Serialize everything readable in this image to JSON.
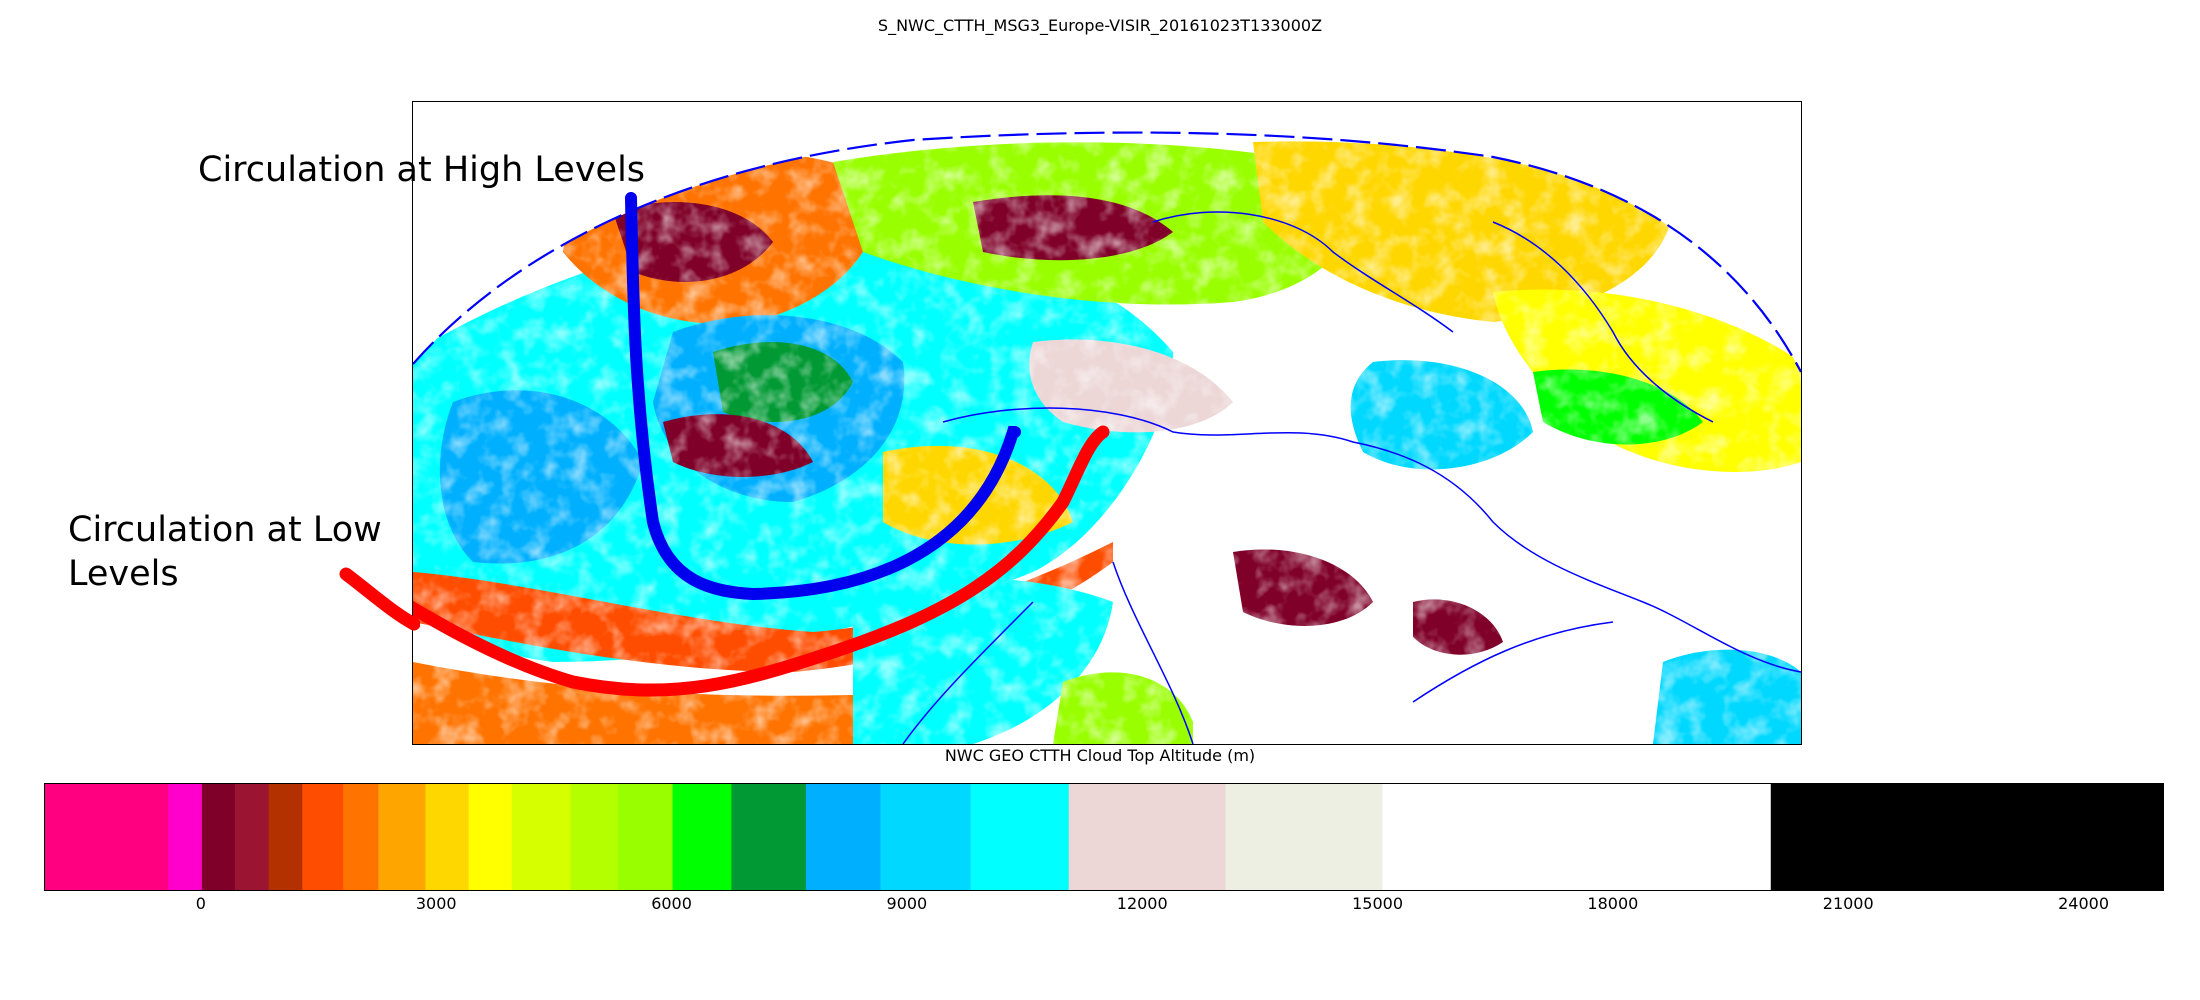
{
  "title": "S_NWC_CTTH_MSG3_Europe-VISIR_20161023T133000Z",
  "annotations": {
    "high": "Circulation at High Levels",
    "low": "Circulation at Low Levels"
  },
  "overlay_lines": {
    "high_level_circulation_color": "#0000ee",
    "low_level_circulation_color": "#ff0000",
    "coastline_color": "#0000ff"
  },
  "colorbar": {
    "label": "NWC GEO CTTH Cloud Top Altitude (m)",
    "vmin": -2000,
    "vmax": 25000,
    "ticks": [
      "0",
      "3000",
      "6000",
      "9000",
      "12000",
      "15000",
      "18000",
      "21000",
      "24000"
    ],
    "tick_values": [
      0,
      3000,
      6000,
      9000,
      12000,
      15000,
      18000,
      21000,
      24000
    ],
    "bins": [
      {
        "from": -2000,
        "to": -430,
        "color": "#ff0080"
      },
      {
        "from": -430,
        "to": 0,
        "color": "#ff00cc"
      },
      {
        "from": 0,
        "to": 420,
        "color": "#7f0028"
      },
      {
        "from": 420,
        "to": 850,
        "color": "#9b1533"
      },
      {
        "from": 850,
        "to": 1280,
        "color": "#b33000"
      },
      {
        "from": 1280,
        "to": 1800,
        "color": "#ff4d00"
      },
      {
        "from": 1800,
        "to": 2250,
        "color": "#ff7300"
      },
      {
        "from": 2250,
        "to": 2850,
        "color": "#ffa500"
      },
      {
        "from": 2850,
        "to": 3400,
        "color": "#ffd700"
      },
      {
        "from": 3400,
        "to": 3950,
        "color": "#ffff00"
      },
      {
        "from": 3950,
        "to": 4700,
        "color": "#d6ff00"
      },
      {
        "from": 4700,
        "to": 5300,
        "color": "#b4ff00"
      },
      {
        "from": 5300,
        "to": 6000,
        "color": "#99ff00"
      },
      {
        "from": 6000,
        "to": 6750,
        "color": "#00ff00"
      },
      {
        "from": 6750,
        "to": 7700,
        "color": "#009933"
      },
      {
        "from": 7700,
        "to": 8650,
        "color": "#00b0ff"
      },
      {
        "from": 8650,
        "to": 9800,
        "color": "#00d8ff"
      },
      {
        "from": 9800,
        "to": 11050,
        "color": "#00ffff"
      },
      {
        "from": 11050,
        "to": 13050,
        "color": "#ecd6d6"
      },
      {
        "from": 13050,
        "to": 15050,
        "color": "#edefe2"
      },
      {
        "from": 15050,
        "to": 20000,
        "color": "#ffffff"
      },
      {
        "from": 20000,
        "to": 25000,
        "color": "#000000"
      }
    ]
  }
}
